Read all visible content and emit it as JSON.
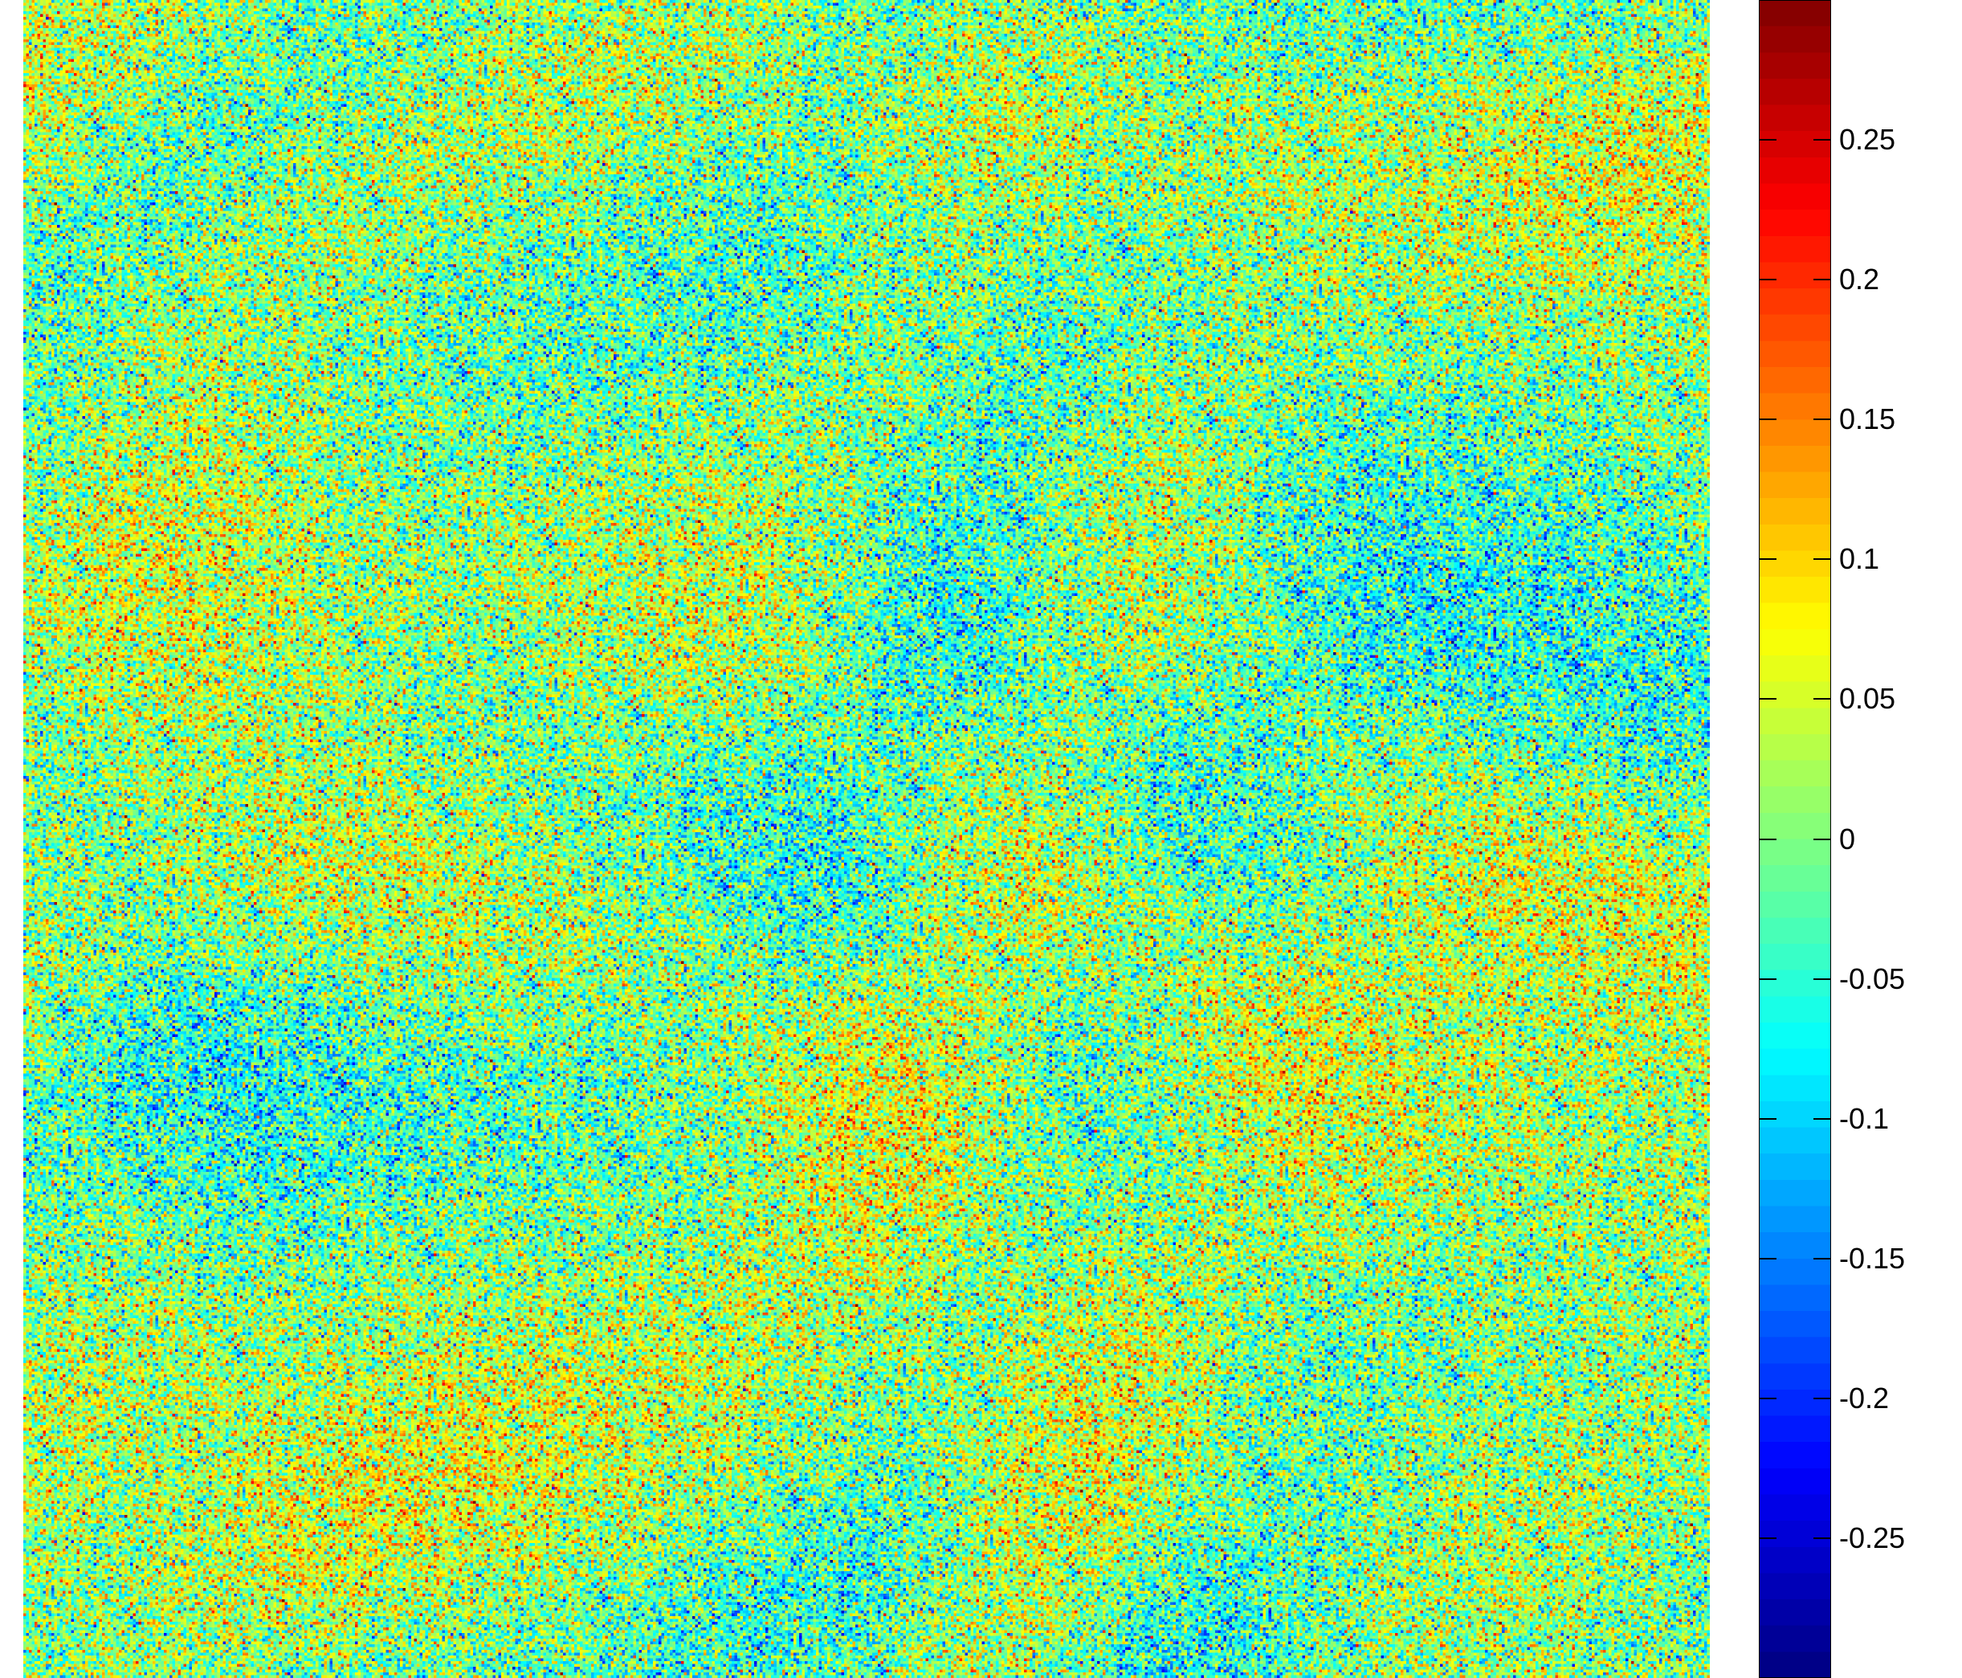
{
  "chart_data": {
    "type": "heatmap",
    "title": "",
    "xlabel": "",
    "ylabel": "",
    "colormap": "jet",
    "color_range": [
      -0.3,
      0.3
    ],
    "grid": false,
    "axes_visible": false,
    "description_of_values": "dense per-pixel noise centered near 0 with faint curved structures",
    "colorbar": {
      "placement": "right",
      "ticks": [
        {
          "value": 0.25,
          "label": "0.25"
        },
        {
          "value": 0.2,
          "label": "0.2"
        },
        {
          "value": 0.15,
          "label": "0.15"
        },
        {
          "value": 0.1,
          "label": "0.1"
        },
        {
          "value": 0.05,
          "label": "0.05"
        },
        {
          "value": 0,
          "label": "0"
        },
        {
          "value": -0.05,
          "label": "-0.05"
        },
        {
          "value": -0.1,
          "label": "-0.1"
        },
        {
          "value": -0.15,
          "label": "-0.15"
        },
        {
          "value": -0.2,
          "label": "-0.2"
        },
        {
          "value": -0.25,
          "label": "-0.25"
        }
      ]
    }
  }
}
